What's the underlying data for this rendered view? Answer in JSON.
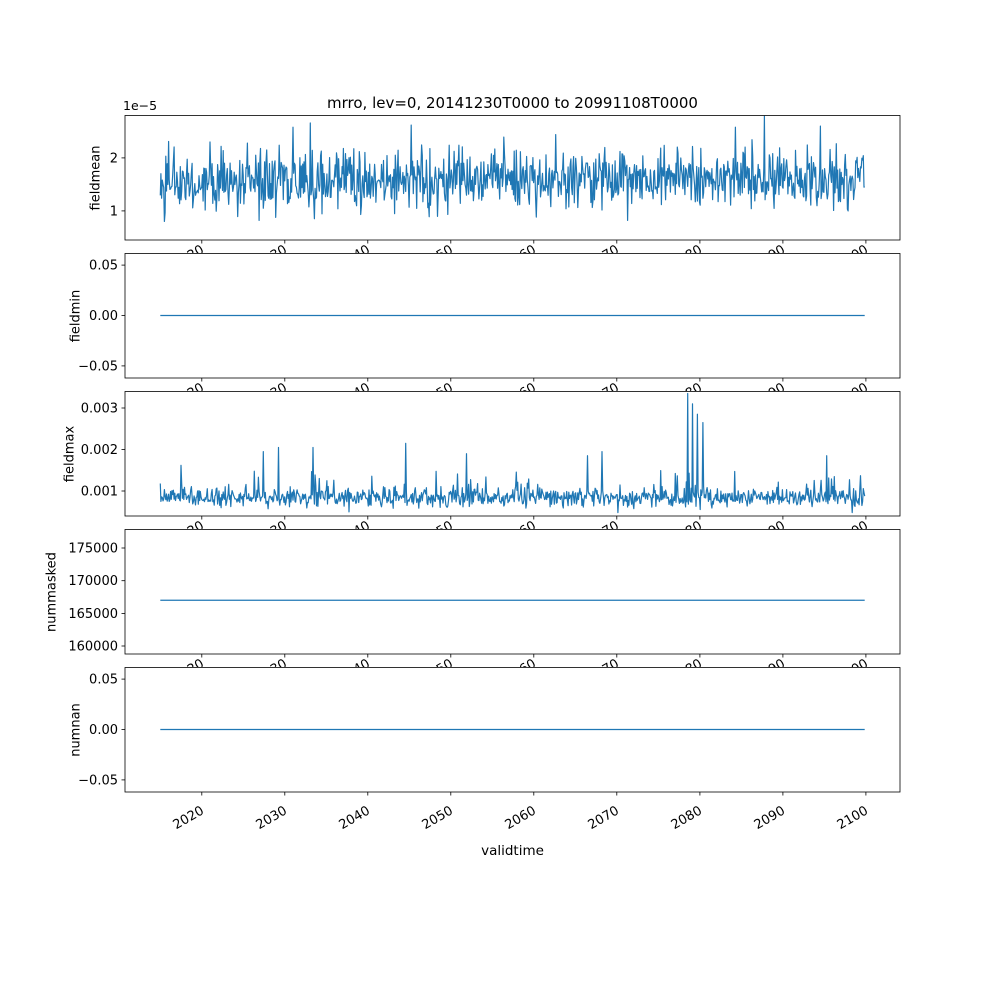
{
  "chart_data": {
    "type": "line",
    "title": "mrro, lev=0, 20141230T0000 to 20991108T0000",
    "xlabel": "validtime",
    "grid": false,
    "legend": null,
    "line_color": "#1f77b4",
    "background": "#ffffff",
    "xlim": [
      2010.75,
      2104.11
    ],
    "x_data_range": [
      2014.997,
      2099.855
    ],
    "x_ticks": [
      {
        "v": 2020,
        "label": "2020"
      },
      {
        "v": 2030,
        "label": "2030"
      },
      {
        "v": 2040,
        "label": "2040"
      },
      {
        "v": 2050,
        "label": "2050"
      },
      {
        "v": 2060,
        "label": "2060"
      },
      {
        "v": 2070,
        "label": "2070"
      },
      {
        "v": 2080,
        "label": "2080"
      },
      {
        "v": 2090,
        "label": "2090"
      },
      {
        "v": 2100,
        "label": "2100"
      }
    ],
    "subplots": [
      {
        "name": "fieldmean",
        "ylabel": "fieldmean",
        "offset_text": "1e−5",
        "unit_scale": "1e-5",
        "ylim": [
          0.45,
          2.81
        ],
        "yticks": [
          {
            "v": 1,
            "label": "1"
          },
          {
            "v": 2,
            "label": "2"
          }
        ],
        "series": {
          "kind": "noise",
          "n": 1020,
          "seed": 42,
          "base": 1.58,
          "std": 0.3,
          "clamp": [
            0.8,
            2.58
          ],
          "spike_prob": 0.015,
          "spike_scale": 0.25,
          "spikes": [
            [
              2026.9,
              0.82
            ],
            [
              2033.1,
              2.66
            ],
            [
              2045.2,
              2.62
            ],
            [
              2087.8,
              2.79
            ],
            [
              2094.5,
              2.6
            ]
          ]
        }
      },
      {
        "name": "fieldmin",
        "ylabel": "fieldmin",
        "ylim": [
          -0.062,
          0.062
        ],
        "yticks": [
          {
            "v": -0.05,
            "label": "−0.05"
          },
          {
            "v": 0,
            "label": "0.00"
          },
          {
            "v": 0.05,
            "label": "0.05"
          }
        ],
        "series": {
          "kind": "flat",
          "value": 0.0
        }
      },
      {
        "name": "fieldmax",
        "ylabel": "fieldmax",
        "ylim": [
          0.000398,
          0.00341
        ],
        "yticks": [
          {
            "v": 0.001,
            "label": "0.001"
          },
          {
            "v": 0.002,
            "label": "0.002"
          },
          {
            "v": 0.003,
            "label": "0.003"
          }
        ],
        "series": {
          "kind": "noise",
          "n": 1020,
          "seed": 7,
          "base": 0.00085,
          "std": 0.00012,
          "clamp": [
            0.00048,
            0.00205
          ],
          "spike_prob": 0.05,
          "spike_scale": 0.0006,
          "spikes": [
            [
              2027.4,
              0.00195
            ],
            [
              2029.2,
              0.00205
            ],
            [
              2033.4,
              0.00205
            ],
            [
              2044.6,
              0.00215
            ],
            [
              2051.9,
              0.0019
            ],
            [
              2066.5,
              0.00185
            ],
            [
              2068.2,
              0.00195
            ],
            [
              2078.5,
              0.00335
            ],
            [
              2079.1,
              0.0031
            ],
            [
              2079.7,
              0.00285
            ],
            [
              2080.4,
              0.00265
            ],
            [
              2095.3,
              0.00185
            ]
          ]
        }
      },
      {
        "name": "nummasked",
        "ylabel": "nummasked",
        "ylim": [
          158780,
          177907
        ],
        "yticks": [
          {
            "v": 160000,
            "label": "160000"
          },
          {
            "v": 165000,
            "label": "165000"
          },
          {
            "v": 170000,
            "label": "170000"
          },
          {
            "v": 175000,
            "label": "175000"
          }
        ],
        "series": {
          "kind": "flat",
          "value": 167000
        }
      },
      {
        "name": "numnan",
        "ylabel": "numnan",
        "ylim": [
          -0.062,
          0.062
        ],
        "yticks": [
          {
            "v": -0.05,
            "label": "−0.05"
          },
          {
            "v": 0,
            "label": "0.00"
          },
          {
            "v": 0.05,
            "label": "0.05"
          }
        ],
        "series": {
          "kind": "flat",
          "value": 0.0
        }
      }
    ]
  }
}
